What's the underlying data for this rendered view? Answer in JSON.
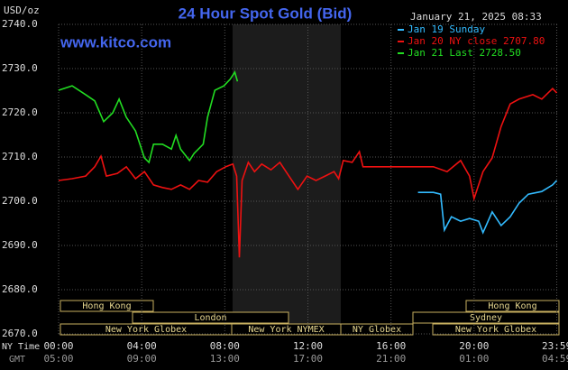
{
  "chart_data": {
    "type": "line",
    "title": "24 Hour Spot Gold (Bid)",
    "y_unit": "USD/oz",
    "source": "www.kitco.com",
    "timestamp": "January 21, 2025 08:33",
    "x_axis_labels": {
      "ny": "NY Time",
      "gmt": "GMT"
    },
    "xlim": [
      0,
      24
    ],
    "xticks": [
      {
        "value": 0,
        "label": "00:00"
      },
      {
        "value": 4,
        "label": "04:00"
      },
      {
        "value": 8,
        "label": "08:00"
      },
      {
        "value": 12,
        "label": "12:00"
      },
      {
        "value": 16,
        "label": "16:00"
      },
      {
        "value": 20,
        "label": "20:00"
      },
      {
        "value": 23.98,
        "label": "23:59"
      }
    ],
    "gmt_tick_labels": [
      "05:00",
      "09:00",
      "13:00",
      "17:00",
      "21:00",
      "01:00",
      "04:59"
    ],
    "ylim": [
      2670,
      2740
    ],
    "yticks": [
      {
        "value": 2670,
        "label": "2670.0"
      },
      {
        "value": 2680,
        "label": "2680.0"
      },
      {
        "value": 2690,
        "label": "2690.0"
      },
      {
        "value": 2700,
        "label": "2700.0"
      },
      {
        "value": 2710,
        "label": "2710.0"
      },
      {
        "value": 2720,
        "label": "2720.0"
      },
      {
        "value": 2730,
        "label": "2730.0"
      },
      {
        "value": 2740,
        "label": "2740.0"
      }
    ],
    "grid": true,
    "sessions": [
      "Hong Kong",
      "London",
      "New York Globex",
      "New York NYMEX",
      "NY Globex",
      "New York Globex",
      "Sydney",
      "Hong Kong"
    ],
    "series": [
      {
        "name": "Jan 19 Sunday",
        "color": "#33bbff",
        "x": [
          17.3,
          18.04,
          18.39,
          18.57,
          18.91,
          19.35,
          19.78,
          20.22,
          20.43,
          20.87,
          21.3,
          21.74,
          22.17,
          22.61,
          23.26,
          23.78,
          23.98
        ],
        "values": [
          2702.0,
          2702.0,
          2701.6,
          2693.5,
          2696.5,
          2695.5,
          2696.1,
          2695.5,
          2692.9,
          2697.6,
          2694.5,
          2696.5,
          2699.6,
          2701.6,
          2702.2,
          2703.7,
          2704.7
        ]
      },
      {
        "name": "Jan 20 NY close 2707.80",
        "color": "#ee1111",
        "x": [
          0,
          0.65,
          1.3,
          1.74,
          2.04,
          2.3,
          2.83,
          3.26,
          3.7,
          4.13,
          4.57,
          5.0,
          5.43,
          5.87,
          6.3,
          6.74,
          7.17,
          7.61,
          8.04,
          8.39,
          8.57,
          8.7,
          8.83,
          9.13,
          9.43,
          9.78,
          10.22,
          10.65,
          11.09,
          11.52,
          11.96,
          12.39,
          12.83,
          13.26,
          13.48,
          13.7,
          14.13,
          14.48,
          14.65,
          15.43,
          18.04,
          18.7,
          19.35,
          19.78,
          20.0,
          20.43,
          20.87,
          21.3,
          21.74,
          22.17,
          22.83,
          23.26,
          23.78,
          23.98
        ],
        "values": [
          2704.7,
          2705.1,
          2705.7,
          2707.8,
          2710.2,
          2705.7,
          2706.3,
          2707.8,
          2705.1,
          2706.7,
          2703.7,
          2703.1,
          2702.7,
          2703.7,
          2702.7,
          2704.7,
          2704.3,
          2706.7,
          2707.8,
          2708.4,
          2705.7,
          2687.3,
          2704.7,
          2708.8,
          2706.7,
          2708.4,
          2707.1,
          2708.8,
          2705.7,
          2702.7,
          2705.7,
          2704.7,
          2705.7,
          2706.7,
          2705.1,
          2709.2,
          2708.8,
          2711.2,
          2707.8,
          2707.8,
          2707.8,
          2706.7,
          2709.2,
          2705.7,
          2700.6,
          2706.7,
          2709.8,
          2716.9,
          2722.0,
          2723.1,
          2724.1,
          2723.1,
          2725.5,
          2724.5
        ]
      },
      {
        "name": "Jan 21 Last 2728.50",
        "color": "#22dd22",
        "x": [
          0,
          0.65,
          1.3,
          1.74,
          2.17,
          2.61,
          2.91,
          3.26,
          3.7,
          4.13,
          4.35,
          4.57,
          5.0,
          5.43,
          5.65,
          5.87,
          6.3,
          6.52,
          6.96,
          7.17,
          7.52,
          7.96,
          8.26,
          8.48,
          8.61
        ],
        "values": [
          2725.1,
          2726.1,
          2724.1,
          2722.7,
          2718.0,
          2720.0,
          2723.1,
          2719.0,
          2715.9,
          2709.8,
          2708.8,
          2712.9,
          2712.9,
          2711.8,
          2714.9,
          2711.8,
          2709.2,
          2710.8,
          2712.9,
          2719.0,
          2725.1,
          2726.1,
          2727.6,
          2729.2,
          2727.1
        ]
      }
    ]
  }
}
